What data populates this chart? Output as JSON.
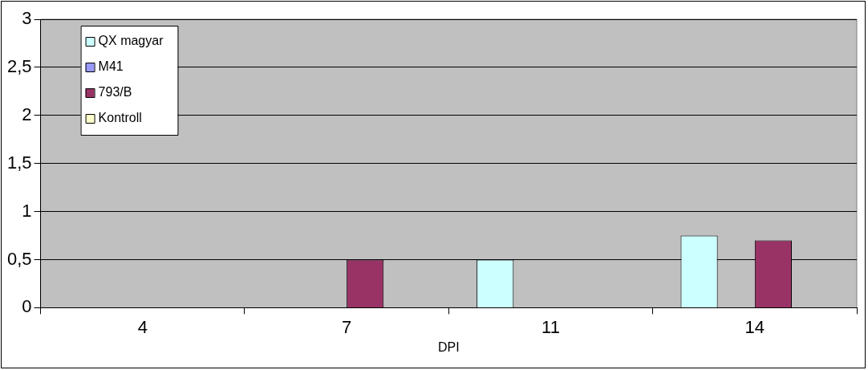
{
  "chart_data": {
    "type": "bar",
    "xlabel": "DPI",
    "categories": [
      "4",
      "7",
      "11",
      "14"
    ],
    "series": [
      {
        "name": "QX magyar",
        "color": "#ccffff",
        "values": [
          0,
          0,
          0.5,
          0.75
        ]
      },
      {
        "name": "M41",
        "color": "#9999ff",
        "values": [
          0,
          0,
          0,
          0
        ]
      },
      {
        "name": "793/B",
        "color": "#993366",
        "values": [
          0,
          0.5,
          0,
          0.7
        ]
      },
      {
        "name": "Kontroll",
        "color": "#ffffcc",
        "values": [
          0,
          0,
          0,
          0
        ]
      }
    ],
    "ylim": [
      0,
      3
    ],
    "yticks": [
      0,
      {
        "value": 0.5,
        "label": "0,5"
      },
      1,
      {
        "value": 1.5,
        "label": "1,5"
      },
      2,
      {
        "value": 2.5,
        "label": "2,5"
      },
      3
    ],
    "grid": "y",
    "legend": "top left"
  }
}
